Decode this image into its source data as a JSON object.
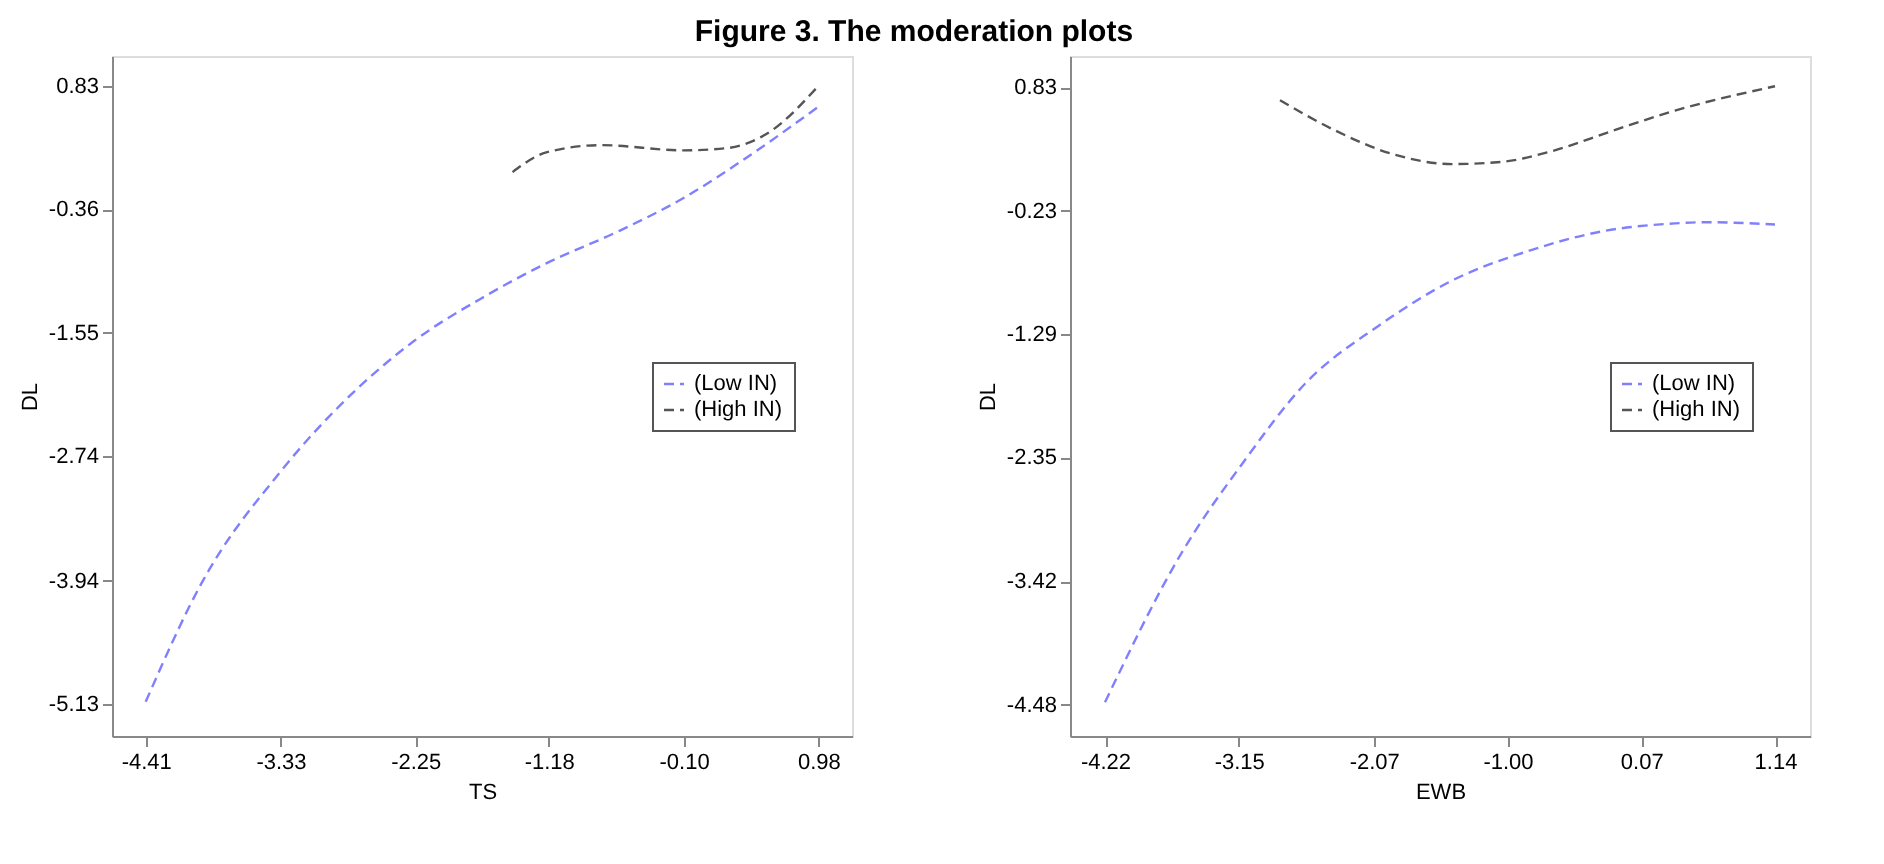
{
  "chart_data": [
    {
      "type": "line",
      "title": "Figure 3. The moderation plots",
      "xlabel": "TS",
      "ylabel": "DL",
      "xlim": [
        -4.68,
        1.25
      ],
      "ylim": [
        -5.44,
        1.12
      ],
      "xticks": [
        -4.41,
        -3.33,
        -2.25,
        -1.18,
        {
          "value": -0.1,
          "label": "-0.10"
        },
        0.98
      ],
      "yticks": [
        -5.13,
        -3.94,
        -2.74,
        -1.55,
        -0.36,
        0.83
      ],
      "legend": "right",
      "line_style": "dashed",
      "grid": false,
      "series": [
        {
          "name": "(Low IN)",
          "color": "#8080ff",
          "x": [
            -4.41,
            -3.96,
            -3.33,
            -2.75,
            -2.26,
            -1.68,
            -1.2,
            -0.62,
            -0.1,
            0.43,
            0.98
          ],
          "values": [
            -5.11,
            -3.96,
            -2.89,
            -2.13,
            -1.63,
            -1.19,
            -0.88,
            -0.57,
            -0.25,
            0.16,
            0.63
          ]
        },
        {
          "name": "(High IN)",
          "color": "#555555",
          "x": [
            -1.47,
            -1.2,
            -0.76,
            -0.1,
            0.24,
            0.58,
            0.98
          ],
          "values": [
            0.0,
            0.19,
            0.26,
            0.21,
            0.23,
            0.38,
            0.83
          ]
        }
      ]
    },
    {
      "type": "line",
      "xlabel": "EWB",
      "ylabel": "DL",
      "xlim": [
        -4.5,
        1.42
      ],
      "ylim": [
        -4.75,
        1.1
      ],
      "xticks": [
        -4.22,
        -3.15,
        -2.07,
        {
          "value": -1.0,
          "label": "-1.00"
        },
        0.07,
        1.14
      ],
      "yticks": [
        -4.48,
        -3.42,
        -2.35,
        -1.29,
        -0.23,
        0.83
      ],
      "legend": "right",
      "line_style": "dashed",
      "grid": false,
      "series": [
        {
          "name": "(Low IN)",
          "color": "#8080ff",
          "x": [
            -4.22,
            -3.61,
            -3.11,
            -2.62,
            -2.03,
            -1.44,
            -0.84,
            -0.25,
            0.34,
            0.59,
            1.14
          ],
          "values": [
            -4.46,
            -3.18,
            -2.39,
            -1.72,
            -1.22,
            -0.83,
            -0.58,
            -0.41,
            -0.34,
            -0.33,
            -0.35
          ]
        },
        {
          "name": "(High IN)",
          "color": "#555555",
          "x": [
            -2.82,
            -2.38,
            -1.93,
            -1.44,
            -1.04,
            -0.65,
            -0.15,
            0.34,
            1.14
          ],
          "values": [
            0.72,
            0.46,
            0.26,
            0.17,
            0.19,
            0.28,
            0.46,
            0.63,
            0.84
          ]
        }
      ]
    }
  ]
}
